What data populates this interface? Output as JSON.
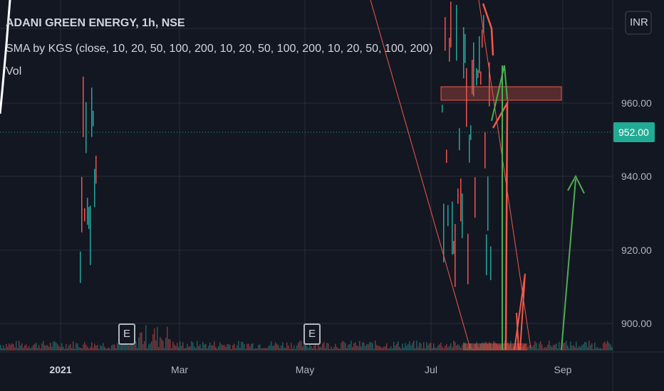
{
  "header": {
    "symbol": "ADANI GREEN ENERGY, 1h, NSE",
    "indicator": "SMA by KGS (close, 10, 20, 50, 100, 200, 10, 20, 50, 100, 200, 10, 20, 50, 100, 200)",
    "volume": "Vol"
  },
  "currency": "INR",
  "price_axis": [
    "960.00",
    "940.00",
    "920.00",
    "900.00"
  ],
  "current_price": "952.00",
  "time_axis": [
    "2021",
    "Mar",
    "May",
    "Jul",
    "Sep"
  ],
  "events": [
    "E",
    "E"
  ]
}
